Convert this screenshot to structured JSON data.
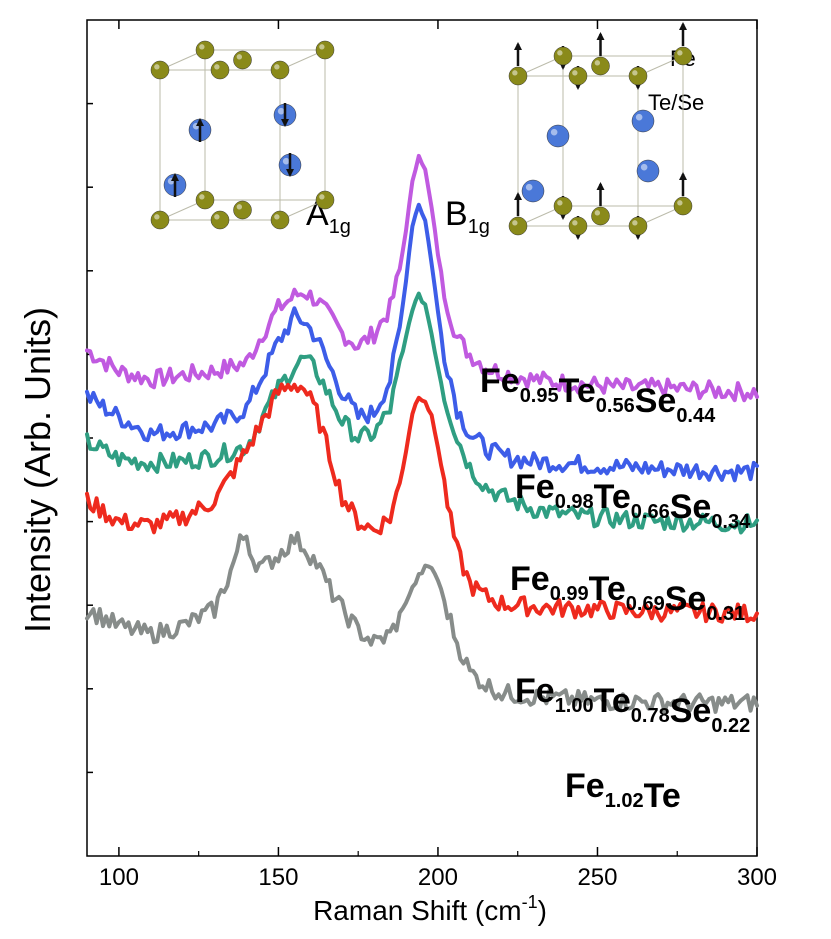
{
  "chart_data": {
    "type": "line",
    "title": "",
    "xlabel": "Raman Shift (cm⁻¹)",
    "xlabel_base": "Raman Shift (cm",
    "xlabel_sup": "-1",
    "xlabel_close": ")",
    "ylabel": "Intensity (Arb. Units)",
    "xlim": [
      90,
      300
    ],
    "ylim": [
      0,
      10
    ],
    "xticks": [
      100,
      150,
      200,
      250,
      300
    ],
    "xtick_labels": [
      "100",
      "150",
      "200",
      "250",
      "300"
    ],
    "yticks": [
      1,
      2,
      3,
      4,
      5,
      6,
      7,
      8,
      9
    ],
    "grid": false,
    "modes": [
      {
        "name": "A1g",
        "base": "A",
        "sub": "1g"
      },
      {
        "name": "B1g",
        "base": "B",
        "sub": "1g"
      }
    ],
    "legend": [
      {
        "label": "Fe",
        "color": "#8a8a1a"
      },
      {
        "label": "Te/Se",
        "color": "#4a78d8"
      }
    ],
    "series": [
      {
        "name": "Fe0.95Te0.56Se0.44",
        "color": "#c05ae0",
        "label_parts": [
          [
            "Fe",
            "0.95"
          ],
          [
            "Te",
            "0.56"
          ],
          [
            "Se",
            "0.44"
          ]
        ],
        "x": [
          90,
          100,
          110,
          120,
          130,
          140,
          145,
          150,
          155,
          158,
          162,
          166,
          170,
          175,
          180,
          185,
          188,
          190,
          192,
          194,
          196,
          198,
          200,
          202,
          204,
          206,
          210,
          215,
          220,
          230,
          240,
          250,
          260,
          270,
          280,
          290,
          300
        ],
        "values": [
          6.05,
          5.8,
          5.7,
          5.75,
          5.8,
          5.9,
          6.25,
          6.55,
          6.7,
          6.75,
          6.65,
          6.45,
          6.25,
          6.1,
          6.25,
          6.55,
          7.0,
          7.5,
          8.05,
          8.4,
          8.2,
          7.75,
          7.2,
          6.75,
          6.45,
          6.2,
          6.0,
          5.85,
          5.78,
          5.7,
          5.66,
          5.63,
          5.6,
          5.6,
          5.58,
          5.56,
          5.55
        ]
      },
      {
        "name": "Fe0.98Te0.66Se0.34",
        "color": "#3d5de8",
        "label_parts": [
          [
            "Fe",
            "0.98"
          ],
          [
            "Te",
            "0.66"
          ],
          [
            "Se",
            "0.34"
          ]
        ],
        "x": [
          90,
          100,
          110,
          120,
          130,
          140,
          145,
          150,
          155,
          158,
          162,
          166,
          170,
          175,
          180,
          185,
          188,
          190,
          192,
          194,
          196,
          198,
          200,
          202,
          204,
          206,
          210,
          215,
          220,
          230,
          240,
          250,
          260,
          270,
          280,
          290,
          300
        ],
        "values": [
          5.5,
          5.25,
          5.05,
          5.1,
          5.15,
          5.35,
          5.75,
          6.15,
          6.45,
          6.4,
          6.2,
          5.85,
          5.55,
          5.25,
          5.3,
          5.7,
          6.3,
          6.9,
          7.55,
          7.8,
          7.6,
          7.1,
          6.5,
          6.0,
          5.7,
          5.35,
          5.05,
          4.88,
          4.78,
          4.72,
          4.7,
          4.67,
          4.65,
          4.63,
          4.62,
          4.6,
          4.6
        ]
      },
      {
        "name": "Fe0.99Te0.69Se0.31",
        "color": "#2f9e82",
        "label_parts": [
          [
            "Fe",
            "0.99"
          ],
          [
            "Te",
            "0.69"
          ],
          [
            "Se",
            "0.31"
          ]
        ],
        "x": [
          90,
          100,
          110,
          120,
          130,
          140,
          145,
          150,
          155,
          158,
          162,
          166,
          170,
          175,
          180,
          185,
          188,
          190,
          192,
          194,
          196,
          198,
          200,
          202,
          204,
          206,
          210,
          215,
          220,
          230,
          240,
          250,
          260,
          270,
          280,
          290,
          300
        ],
        "values": [
          4.95,
          4.75,
          4.7,
          4.72,
          4.78,
          4.9,
          5.25,
          5.6,
          5.85,
          5.95,
          5.8,
          5.5,
          5.2,
          5.0,
          5.05,
          5.35,
          5.85,
          6.2,
          6.55,
          6.7,
          6.6,
          6.25,
          5.85,
          5.5,
          5.25,
          5.0,
          4.65,
          4.42,
          4.3,
          4.15,
          4.08,
          4.05,
          4.02,
          4.0,
          4.0,
          3.98,
          3.98
        ]
      },
      {
        "name": "Fe1.00Te0.78Se0.22",
        "color": "#ee2a1e",
        "label_parts": [
          [
            "Fe",
            "1.00"
          ],
          [
            "Te",
            "0.78"
          ],
          [
            "Se",
            "0.22"
          ]
        ],
        "x": [
          90,
          100,
          110,
          120,
          130,
          140,
          145,
          150,
          155,
          158,
          162,
          166,
          170,
          175,
          180,
          185,
          188,
          190,
          192,
          194,
          196,
          198,
          200,
          202,
          204,
          206,
          210,
          215,
          220,
          230,
          240,
          250,
          260,
          270,
          280,
          290,
          300
        ],
        "values": [
          4.25,
          4.0,
          3.95,
          4.05,
          4.25,
          4.85,
          5.2,
          5.55,
          5.65,
          5.6,
          5.3,
          4.8,
          4.3,
          4.0,
          3.9,
          4.05,
          4.45,
          4.85,
          5.3,
          5.5,
          5.45,
          5.25,
          4.9,
          4.45,
          4.0,
          3.65,
          3.25,
          3.1,
          3.02,
          2.98,
          2.96,
          2.95,
          2.93,
          2.92,
          2.92,
          2.91,
          2.9
        ]
      },
      {
        "name": "Fe1.02Te",
        "color": "#878c8a",
        "label_parts": [
          [
            "Fe",
            "1.02"
          ],
          [
            "Te",
            ""
          ]
        ],
        "x": [
          90,
          100,
          110,
          120,
          130,
          135,
          138,
          140,
          142,
          145,
          150,
          155,
          158,
          162,
          166,
          170,
          175,
          180,
          185,
          188,
          190,
          192,
          194,
          196,
          198,
          200,
          202,
          204,
          206,
          210,
          215,
          220,
          230,
          240,
          250,
          260,
          270,
          280,
          290,
          300
        ],
        "values": [
          2.95,
          2.75,
          2.65,
          2.75,
          2.95,
          3.4,
          3.75,
          3.85,
          3.55,
          3.45,
          3.6,
          3.8,
          3.7,
          3.5,
          3.2,
          2.95,
          2.7,
          2.55,
          2.65,
          2.85,
          3.05,
          3.2,
          3.35,
          3.45,
          3.45,
          3.3,
          3.05,
          2.8,
          2.55,
          2.2,
          2.05,
          1.95,
          1.9,
          1.88,
          1.85,
          1.85,
          1.84,
          1.83,
          1.83,
          1.83
        ]
      }
    ]
  }
}
